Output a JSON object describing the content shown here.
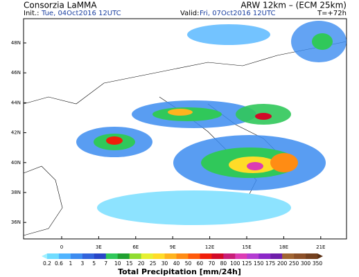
{
  "header": {
    "source": "Consorzia LaMMA",
    "model": "ARW 12km – (ECM 25km)",
    "init_label": "Init.:",
    "init": "Tue, 04Oct2016  12UTC",
    "valid_label": "Valid:",
    "valid": "Fri, 07Oct2016  12UTC",
    "lead": "T=+72h"
  },
  "latitude_labels": [
    "48N",
    "46N",
    "44N",
    "42N",
    "40N",
    "38N",
    "36N"
  ],
  "longitude_labels": [
    "0",
    "3E",
    "6E",
    "9E",
    "12E",
    "15E",
    "18E",
    "21E"
  ],
  "colorbar": {
    "title": "Total Precipitation [mm/24h]",
    "labels": [
      "0.2",
      "0.6",
      "1",
      "3",
      "5",
      "7",
      "10",
      "15",
      "20",
      "25",
      "30",
      "40",
      "50",
      "60",
      "70",
      "80",
      "100",
      "125",
      "150",
      "175",
      "200",
      "250",
      "300",
      "350"
    ],
    "colors": [
      "#a0f0ff",
      "#70dcff",
      "#50b4ff",
      "#3c8cf0",
      "#3264dc",
      "#2846c8",
      "#30c85a",
      "#20a030",
      "#90dc30",
      "#e6f032",
      "#ffdc28",
      "#ffb41e",
      "#ff8c14",
      "#ff5a0a",
      "#f01e0a",
      "#d20a28",
      "#c81e78",
      "#dc3cb4",
      "#b43cd2",
      "#8c28c8",
      "#6e1eaa",
      "#a06432",
      "#8c5028",
      "#74401e",
      "#5a3014"
    ]
  }
}
